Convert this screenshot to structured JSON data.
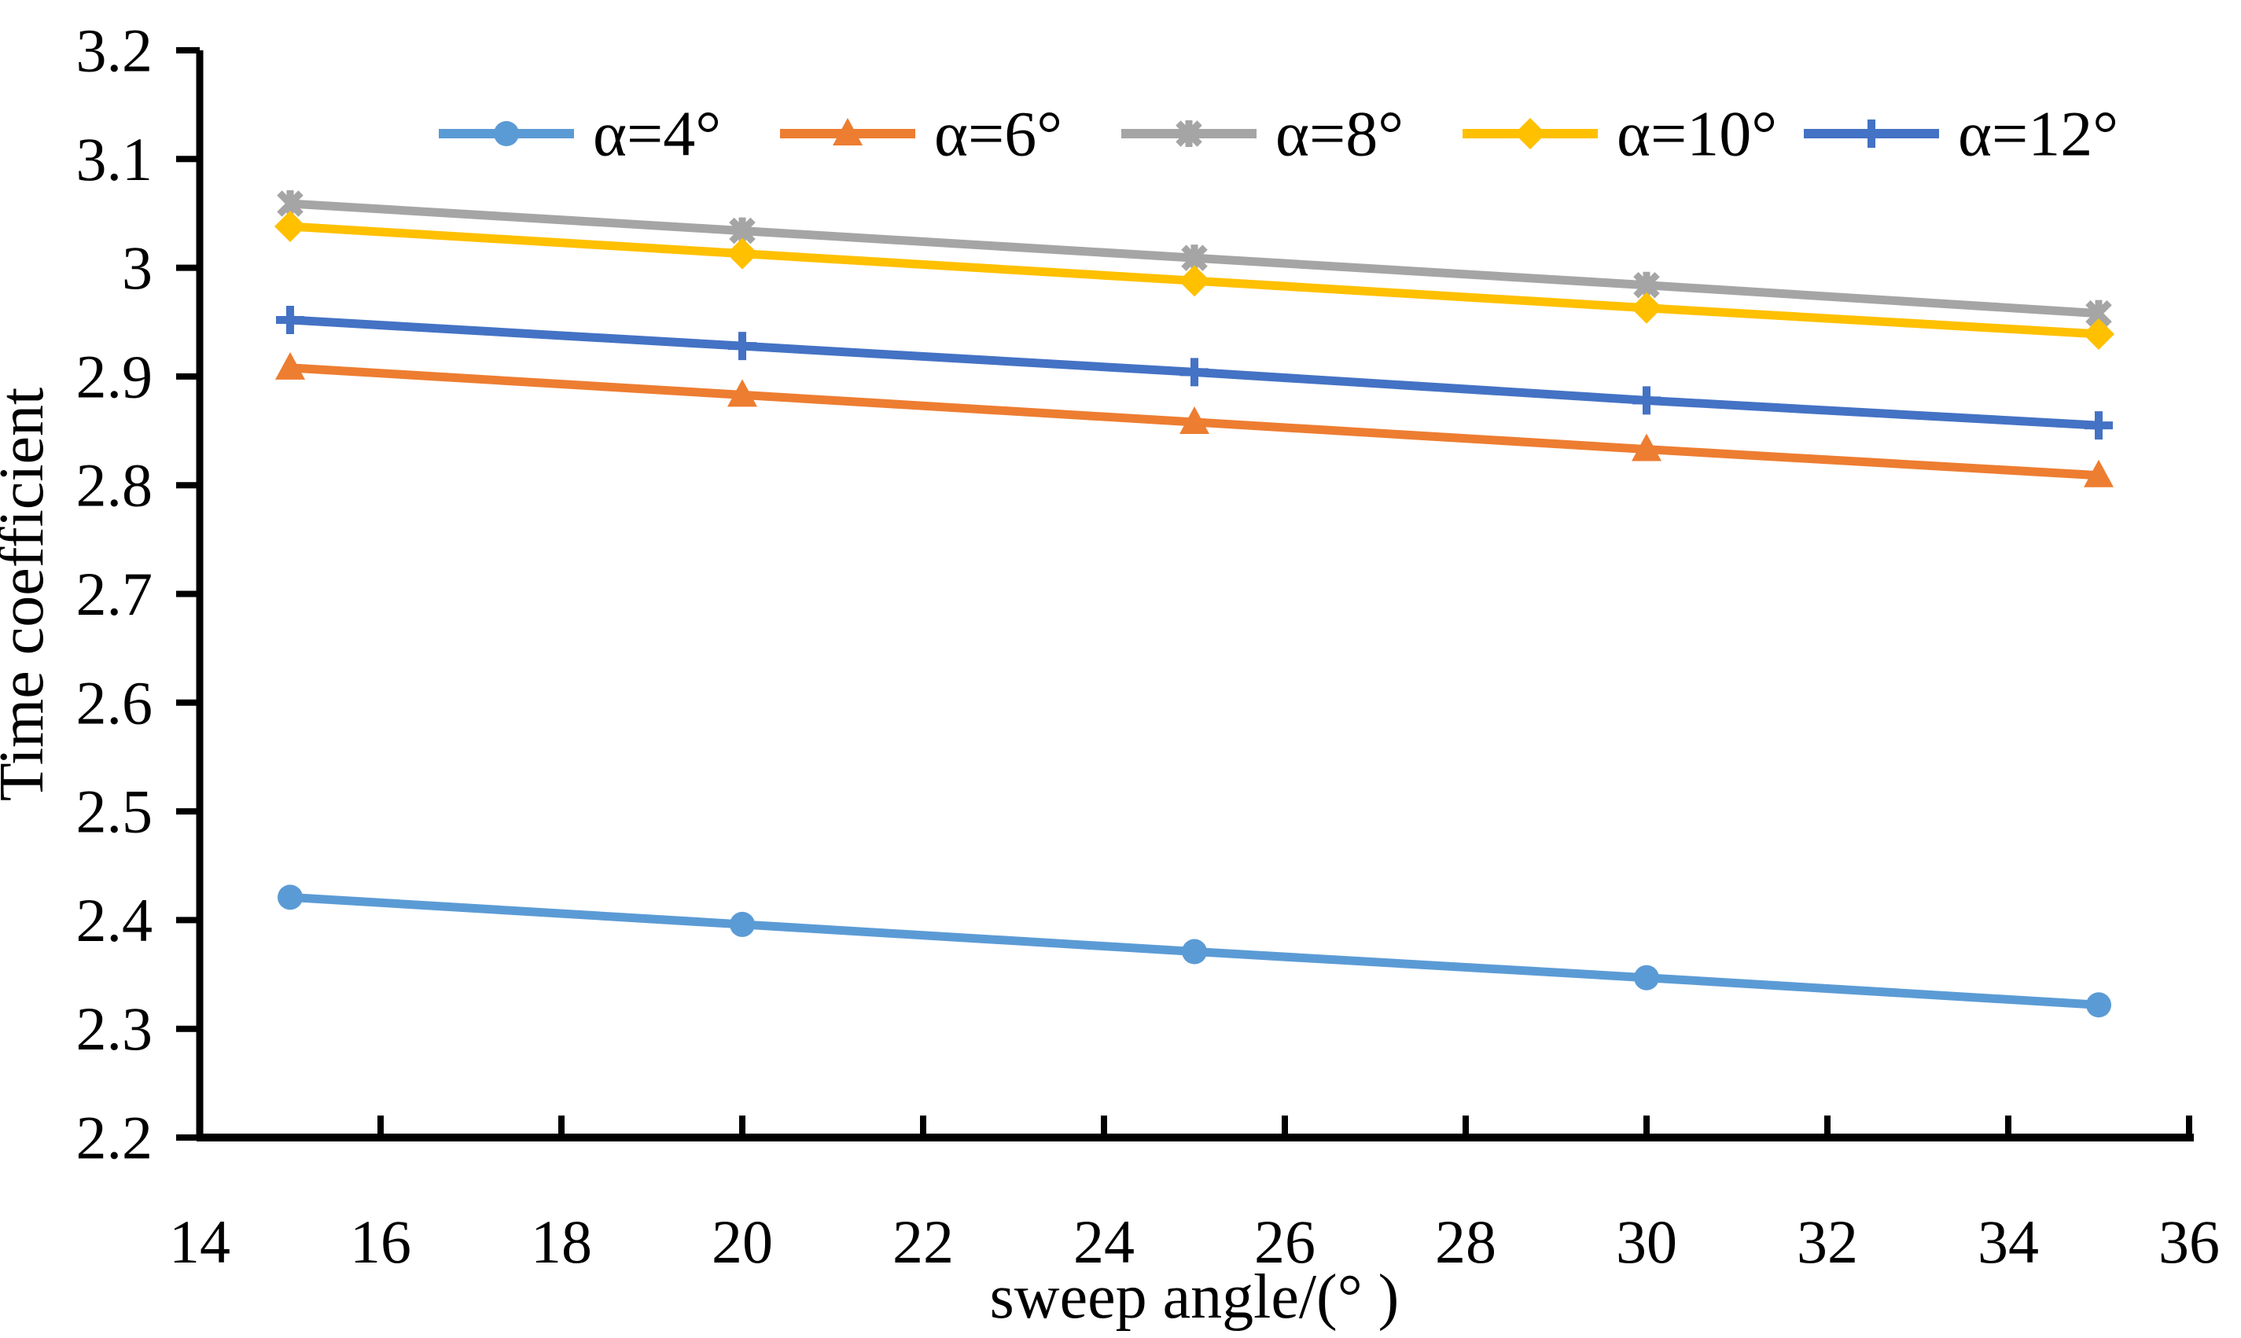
{
  "chart_data": {
    "type": "line",
    "title": "",
    "xlabel": "sweep angle/(° )",
    "ylabel": "Time coefficient",
    "x": [
      15,
      20,
      25,
      30,
      35
    ],
    "xlim": [
      14,
      36
    ],
    "ylim": [
      2.2,
      3.2
    ],
    "x_tick_step": 2,
    "y_tick_step": 0.1,
    "grid": false,
    "legend_position": "top-center-horizontal",
    "axis_color": "#000000",
    "background_color": "#ffffff",
    "series": [
      {
        "name": "α=4°",
        "marker": "circle-marker",
        "color": "#5B9BD5",
        "values": [
          2.421,
          2.396,
          2.371,
          2.347,
          2.322
        ]
      },
      {
        "name": "α=6°",
        "marker": "triangle-marker",
        "color": "#ED7D31",
        "values": [
          2.908,
          2.883,
          2.858,
          2.833,
          2.809
        ]
      },
      {
        "name": "α=8°",
        "marker": "star-marker",
        "color": "#A5A5A5",
        "values": [
          3.059,
          3.034,
          3.009,
          2.984,
          2.958
        ]
      },
      {
        "name": "α=10°",
        "marker": "diamond-marker",
        "color": "#FFC000",
        "values": [
          3.038,
          3.013,
          2.988,
          2.963,
          2.939
        ]
      },
      {
        "name": "α=12°",
        "marker": "plus-marker",
        "color": "#4472C4",
        "values": [
          2.952,
          2.928,
          2.904,
          2.878,
          2.855
        ]
      }
    ]
  }
}
